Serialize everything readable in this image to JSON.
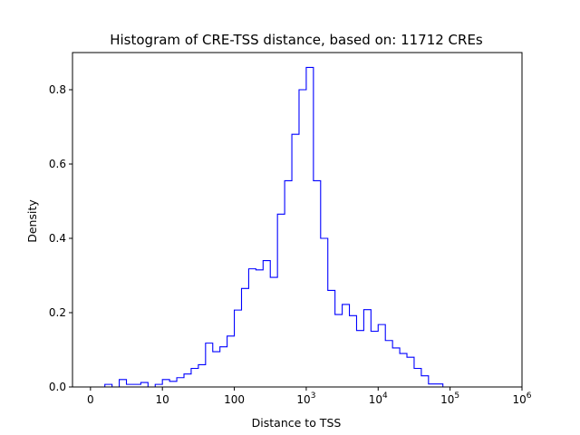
{
  "chart_data": {
    "type": "histogram",
    "title": "Histogram of CRE-TSS distance, based on: 11712 CREs",
    "xlabel": "Distance to TSS",
    "ylabel": "Density",
    "x_scale": "symlog",
    "xlim": [
      -0.25,
      6
    ],
    "ylim": [
      0,
      0.9
    ],
    "x_ticks": [
      {
        "pos": 0,
        "label": "0"
      },
      {
        "pos": 1,
        "label": "10"
      },
      {
        "pos": 2,
        "label": "100"
      },
      {
        "pos": 3,
        "base": "10",
        "exp": "3"
      },
      {
        "pos": 4,
        "base": "10",
        "exp": "4"
      },
      {
        "pos": 5,
        "base": "10",
        "exp": "5"
      },
      {
        "pos": 6,
        "base": "10",
        "exp": "6"
      }
    ],
    "y_ticks": [
      0.0,
      0.2,
      0.4,
      0.6,
      0.8
    ],
    "y_tick_labels": [
      "0.0",
      "0.2",
      "0.4",
      "0.6",
      "0.8"
    ],
    "color": "#0000ff",
    "bin_edges_from": 0.0,
    "bin_width": 0.1,
    "densities": [
      0.0,
      0.0,
      0.007,
      0.0,
      0.02,
      0.007,
      0.007,
      0.012,
      0.0,
      0.007,
      0.02,
      0.015,
      0.025,
      0.035,
      0.05,
      0.06,
      0.118,
      0.095,
      0.108,
      0.137,
      0.207,
      0.265,
      0.318,
      0.315,
      0.34,
      0.295,
      0.465,
      0.555,
      0.68,
      0.8,
      0.86,
      0.555,
      0.4,
      0.26,
      0.195,
      0.222,
      0.192,
      0.152,
      0.208,
      0.15,
      0.168,
      0.125,
      0.105,
      0.09,
      0.08,
      0.05,
      0.03,
      0.008,
      0.008,
      0.0,
      0.0,
      0.0
    ]
  }
}
